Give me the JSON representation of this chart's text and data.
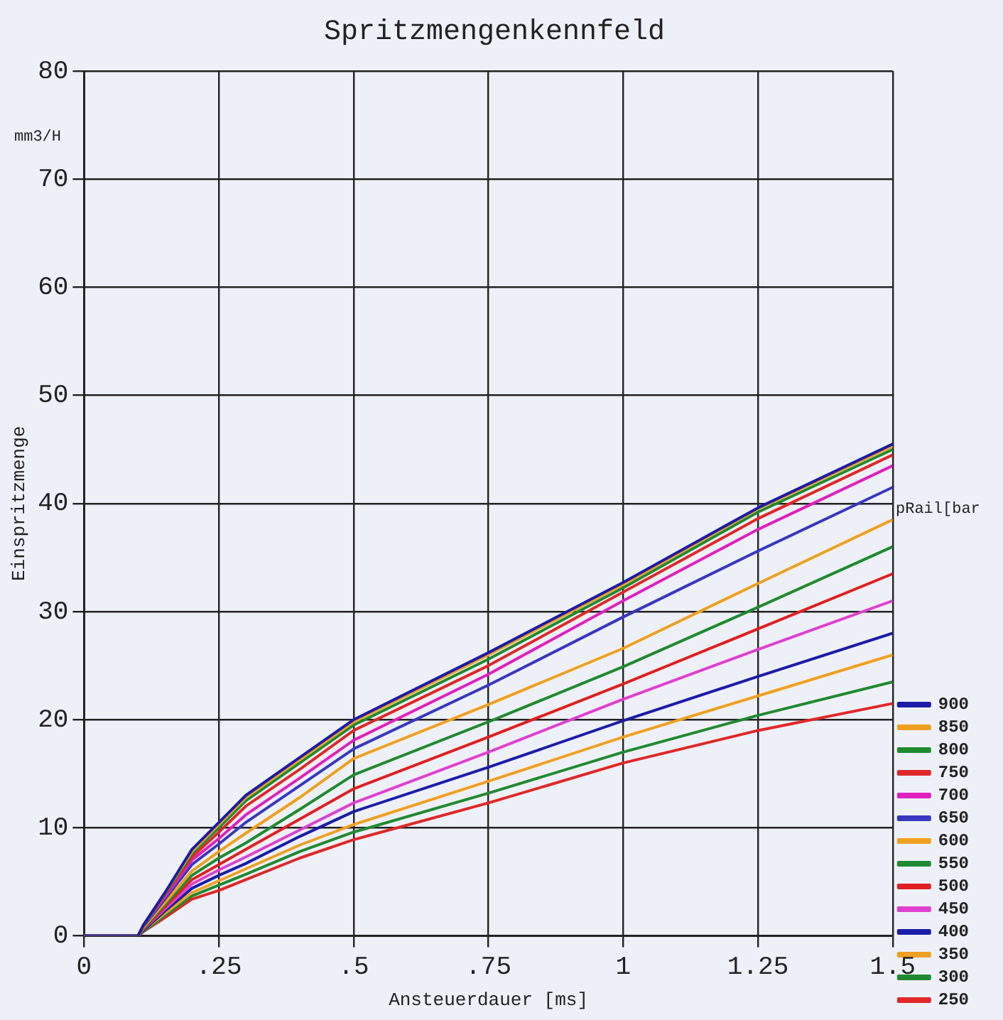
{
  "chart_data": {
    "type": "line",
    "title": "Spritzmengenkennfeld",
    "xlabel": "Ansteuerdauer [ms]",
    "ylabel": "Einspritzmenge",
    "legend_title": "pRail[bar",
    "annotations": [
      "mm3/H"
    ],
    "x": [
      0,
      0.1,
      0.11,
      0.15,
      0.2,
      0.25,
      0.3,
      0.4,
      0.5,
      0.75,
      1.0,
      1.25,
      1.5
    ],
    "xlim": [
      0,
      1.5
    ],
    "xticks": [
      0,
      {
        "value": 0.25,
        "label": ".25"
      },
      {
        "value": 0.5,
        "label": ".5"
      },
      {
        "value": 0.75,
        "label": ".75"
      },
      1,
      1.25,
      1.5
    ],
    "ylim": [
      0,
      80
    ],
    "yticks": [
      0,
      10,
      20,
      30,
      40,
      50,
      60,
      70,
      80
    ],
    "grid": true,
    "legend": "bottom right",
    "marker": "none",
    "line_style": "solid",
    "series": [
      {
        "name": "900",
        "color": "#1c1ca8",
        "values": [
          0,
          0,
          1,
          4,
          8,
          10.5,
          13,
          16.5,
          20,
          26.2,
          32.7,
          39.6,
          45.5
        ]
      },
      {
        "name": "850",
        "color": "#f0a020",
        "values": [
          0,
          0,
          1,
          4,
          7.8,
          10.3,
          12.8,
          16.3,
          19.8,
          26,
          32.5,
          39.5,
          45.3
        ]
      },
      {
        "name": "800",
        "color": "#208a30",
        "values": [
          0,
          0,
          1,
          3.9,
          7.6,
          10,
          12.5,
          16,
          19.5,
          25.6,
          32.2,
          39.2,
          45
        ]
      },
      {
        "name": "750",
        "color": "#e02828",
        "values": [
          0,
          0,
          1,
          3.8,
          7.3,
          9.6,
          12,
          15.4,
          19,
          25,
          31.8,
          38.6,
          44.5
        ]
      },
      {
        "name": "700",
        "color": "#e020c0",
        "values": [
          0,
          0,
          1,
          3.6,
          7,
          9,
          11.2,
          14.6,
          18.1,
          24.2,
          31,
          37.6,
          43.5
        ]
      },
      {
        "name": "650",
        "color": "#3838c0",
        "values": [
          0,
          0,
          0.9,
          3.4,
          6.6,
          8.5,
          10.5,
          13.9,
          17.3,
          23.2,
          29.5,
          35.6,
          41.5
        ]
      },
      {
        "name": "600",
        "color": "#f0a020",
        "values": [
          0,
          0,
          0.8,
          3.1,
          6,
          7.8,
          9.5,
          12.8,
          16.4,
          21.4,
          26.6,
          32.6,
          38.5
        ]
      },
      {
        "name": "550",
        "color": "#208a30",
        "values": [
          0,
          0,
          0.7,
          2.9,
          5.6,
          7.2,
          8.6,
          11.7,
          14.9,
          19.8,
          24.9,
          30.4,
          36
        ]
      },
      {
        "name": "500",
        "color": "#e02020",
        "values": [
          0,
          0,
          0.6,
          2.7,
          5.2,
          6.6,
          8,
          10.8,
          13.6,
          18.4,
          23.3,
          28.4,
          33.5
        ]
      },
      {
        "name": "450",
        "color": "#e040d0",
        "values": [
          0,
          0,
          0.6,
          2.5,
          4.8,
          6.1,
          7.3,
          9.8,
          12.3,
          17,
          21.9,
          26.5,
          31
        ]
      },
      {
        "name": "400",
        "color": "#1c1ca8",
        "values": [
          0,
          0,
          0.5,
          2.3,
          4.4,
          5.6,
          6.7,
          9.2,
          11.5,
          15.6,
          19.9,
          24,
          28
        ]
      },
      {
        "name": "350",
        "color": "#f0a020",
        "values": [
          0,
          0,
          0.5,
          2.1,
          4,
          5.1,
          6.2,
          8.4,
          10.3,
          14.3,
          18.4,
          22.2,
          26
        ]
      },
      {
        "name": "300",
        "color": "#208a30",
        "values": [
          0,
          0,
          0.4,
          1.9,
          3.7,
          4.7,
          5.7,
          7.8,
          9.6,
          13.2,
          17,
          20.4,
          23.5
        ]
      },
      {
        "name": "250",
        "color": "#e02828",
        "values": [
          0,
          0,
          0.4,
          1.7,
          3.4,
          4.2,
          5.2,
          7.2,
          8.9,
          12.3,
          16,
          19,
          21.5
        ]
      }
    ]
  }
}
